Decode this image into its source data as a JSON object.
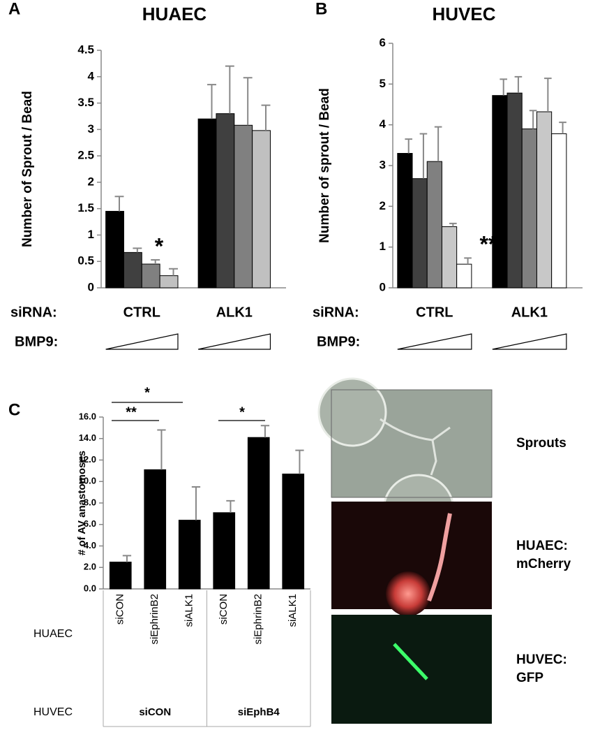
{
  "chart_data": [
    {
      "type": "bar",
      "panel_label": "A",
      "title": "HUAEC",
      "ylabel": "Number of Sprout / Bead",
      "categories": [
        "CTRL",
        "ALK1"
      ],
      "series": [
        {
          "color": "#000000",
          "values": [
            1.45,
            3.2
          ],
          "errors": [
            0.28,
            0.65
          ]
        },
        {
          "color": "#404040",
          "values": [
            0.67,
            3.3
          ],
          "errors": [
            0.08,
            0.9
          ]
        },
        {
          "color": "#808080",
          "values": [
            0.45,
            3.08
          ],
          "errors": [
            0.08,
            0.9
          ]
        },
        {
          "color": "#c0c0c0",
          "values": [
            0.23,
            2.98
          ],
          "errors": [
            0.13,
            0.48
          ]
        }
      ],
      "ylim": [
        0,
        4.5
      ],
      "yticks": [
        0,
        0.5,
        1,
        1.5,
        2,
        2.5,
        3,
        3.5,
        4,
        4.5
      ],
      "row_labels": [
        "siRNA:",
        "BMP9:"
      ],
      "annotations": [
        "*"
      ]
    },
    {
      "type": "bar",
      "panel_label": "B",
      "title": "HUVEC",
      "ylabel": "Number of sprout / Bead",
      "categories": [
        "CTRL",
        "ALK1"
      ],
      "series": [
        {
          "color": "#000000",
          "values": [
            3.3,
            4.72
          ],
          "errors": [
            0.35,
            0.4
          ]
        },
        {
          "color": "#404040",
          "values": [
            2.68,
            4.78
          ],
          "errors": [
            1.1,
            0.4
          ]
        },
        {
          "color": "#808080",
          "values": [
            3.1,
            3.9
          ],
          "errors": [
            0.85,
            0.45
          ]
        },
        {
          "color": "#c8c8c8",
          "values": [
            1.5,
            4.32
          ],
          "errors": [
            0.08,
            0.82
          ]
        },
        {
          "color": "#ffffff",
          "values": [
            0.58,
            3.78
          ],
          "errors": [
            0.15,
            0.28
          ]
        }
      ],
      "ylim": [
        0,
        6
      ],
      "yticks": [
        0,
        1,
        2,
        3,
        4,
        5,
        6
      ],
      "row_labels": [
        "siRNA:",
        "BMP9:"
      ],
      "annotations": [
        "**"
      ]
    },
    {
      "type": "bar",
      "panel_label": "C",
      "ylabel": "# of AV anastomoses",
      "categories": [
        "siCON",
        "siEphrinB2",
        "siALK1",
        "siCON",
        "siEphrinB2",
        "siALK1"
      ],
      "color": "#000000",
      "values": [
        2.5,
        11.1,
        6.4,
        7.1,
        14.1,
        10.7
      ],
      "errors": [
        0.6,
        3.7,
        3.1,
        1.1,
        1.1,
        2.2
      ],
      "ylim": [
        0,
        16
      ],
      "yticks": [
        {
          "value": 0,
          "label": "0.0"
        },
        {
          "value": 2,
          "label": "2.0"
        },
        {
          "value": 4,
          "label": "4.0"
        },
        {
          "value": 6,
          "label": "6.0"
        },
        {
          "value": 8,
          "label": "8.0"
        },
        {
          "value": 10,
          "label": "10.0"
        },
        {
          "value": 12,
          "label": "12.0"
        },
        {
          "value": 14,
          "label": "14.0"
        },
        {
          "value": 16,
          "label": "16.0"
        }
      ],
      "row_labels": [
        "HUAEC",
        "HUVEC"
      ],
      "groups": [
        "siCON",
        "siEphB4"
      ],
      "annotations": [
        "*",
        "**",
        "*"
      ]
    }
  ],
  "images": [
    {
      "label": "Sprouts"
    },
    {
      "label": "HUAEC:",
      "label2": "mCherry"
    },
    {
      "label": "HUVEC:",
      "label2": "GFP"
    }
  ]
}
